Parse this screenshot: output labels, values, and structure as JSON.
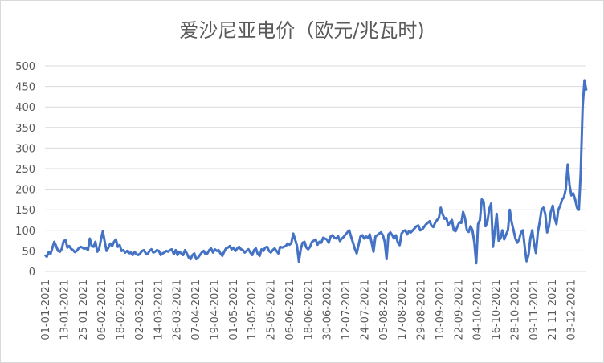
{
  "chart_data": {
    "type": "line",
    "title": "爱沙尼亚电价（欧元/兆瓦时)",
    "xlabel": "",
    "ylabel": "",
    "ylim": [
      0,
      500
    ],
    "yticks": [
      0,
      50,
      100,
      150,
      200,
      250,
      300,
      350,
      400,
      450,
      500
    ],
    "grid": true,
    "legend": "none",
    "series_color": "#4472C4",
    "x_tick_labels": [
      "01-01-2021",
      "13-01-2021",
      "25-01-2021",
      "06-02-2021",
      "18-02-2021",
      "02-03-2021",
      "14-03-2021",
      "26-03-2021",
      "07-04-2021",
      "19-04-2021",
      "01-05-2021",
      "13-05-2021",
      "25-05-2021",
      "06-06-2021",
      "18-06-2021",
      "30-06-2021",
      "12-07-2021",
      "24-07-2021",
      "05-08-2021",
      "17-08-2021",
      "29-08-2021",
      "10-09-2021",
      "22-09-2021",
      "04-10-2021",
      "16-10-2021",
      "28-10-2021",
      "09-11-2021",
      "21-11-2021",
      "03-12-2021"
    ],
    "x_start": "01-01-2021",
    "x_end": "13-12-2021",
    "series": [
      {
        "values": [
          40,
          36,
          47,
          43,
          58,
          72,
          62,
          50,
          48,
          55,
          74,
          76,
          58,
          62,
          55,
          52,
          47,
          50,
          56,
          60,
          58,
          55,
          57,
          52,
          80,
          62,
          60,
          72,
          48,
          55,
          78,
          98,
          72,
          50,
          58,
          68,
          62,
          72,
          78,
          60,
          64,
          50,
          52,
          46,
          50,
          44,
          46,
          40,
          48,
          42,
          40,
          44,
          50,
          52,
          44,
          42,
          50,
          54,
          46,
          48,
          52,
          50,
          40,
          44,
          46,
          50,
          48,
          52,
          54,
          42,
          52,
          40,
          48,
          44,
          40,
          52,
          44,
          34,
          30,
          40,
          44,
          30,
          34,
          40,
          46,
          50,
          42,
          44,
          52,
          56,
          46,
          54,
          50,
          52,
          44,
          38,
          48,
          56,
          58,
          62,
          54,
          58,
          50,
          56,
          60,
          54,
          52,
          46,
          50,
          54,
          46,
          40,
          52,
          56,
          42,
          38,
          54,
          50,
          58,
          60,
          50,
          46,
          52,
          56,
          50,
          44,
          60,
          58,
          60,
          62,
          68,
          65,
          70,
          92,
          78,
          62,
          24,
          54,
          70,
          72,
          58,
          54,
          60,
          72,
          75,
          78,
          65,
          72,
          70,
          82,
          80,
          78,
          70,
          85,
          88,
          82,
          80,
          86,
          74,
          80,
          84,
          90,
          95,
          100,
          84,
          70,
          55,
          44,
          65,
          85,
          88,
          80,
          85,
          82,
          90,
          70,
          48,
          85,
          88,
          92,
          95,
          88,
          72,
          30,
          90,
          95,
          88,
          80,
          88,
          70,
          64,
          92,
          98,
          100,
          90,
          98,
          95,
          100,
          105,
          110,
          112,
          100,
          102,
          108,
          114,
          118,
          122,
          112,
          108,
          118,
          125,
          130,
          155,
          140,
          128,
          130,
          112,
          120,
          125,
          100,
          98,
          110,
          120,
          118,
          145,
          130,
          100,
          96,
          110,
          100,
          70,
          20,
          115,
          125,
          175,
          170,
          110,
          120,
          152,
          165,
          60,
          100,
          140,
          75,
          80,
          100,
          78,
          90,
          100,
          150,
          120,
          100,
          80,
          70,
          78,
          95,
          100,
          60,
          25,
          40,
          80,
          100,
          68,
          45,
          95,
          120,
          150,
          155,
          140,
          95,
          110,
          145,
          160,
          130,
          115,
          150,
          160,
          175,
          180,
          200,
          260,
          210,
          185,
          190,
          175,
          155,
          150,
          240,
          400,
          465,
          440
        ]
      }
    ]
  }
}
